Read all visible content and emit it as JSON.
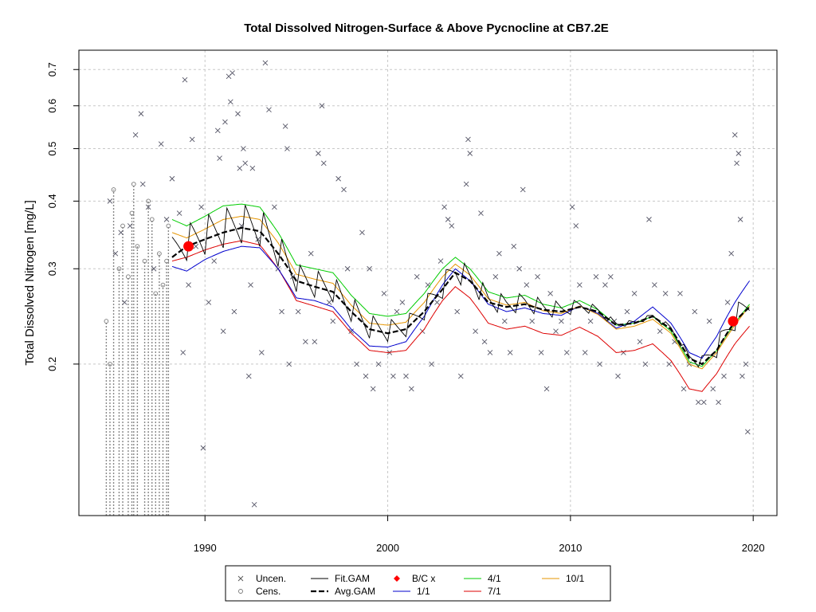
{
  "chart_data": {
    "type": "scatter",
    "title": "Total Dissolved Nitrogen-Surface & Above Pycnocline at CB7.2E",
    "xlabel": "",
    "ylabel": "Total Dissolved Nitrogen [mg/L]",
    "y_scale": "log",
    "xlim": [
      1983.1,
      2021.3
    ],
    "ylim": [
      0.105,
      0.76
    ],
    "x_ticks": [
      1990,
      2000,
      2010,
      2020
    ],
    "y_ticks": [
      0.2,
      0.3,
      0.4,
      0.5,
      0.6,
      0.7
    ],
    "grid": true,
    "legend_position": "bottom",
    "legend": [
      {
        "label": "Uncen.",
        "symbol": "x",
        "color": "#555555"
      },
      {
        "label": "Cens.",
        "symbol": "circle",
        "color": "#777777"
      },
      {
        "label": "Fit.GAM",
        "symbol": "line",
        "color": "#000000"
      },
      {
        "label": "Avg.GAM",
        "symbol": "dashed-thick",
        "color": "#000000"
      },
      {
        "label": "B/C x",
        "symbol": "diamond",
        "color": "#ff0000"
      },
      {
        "label": "1/1",
        "symbol": "line",
        "color": "#0000cd"
      },
      {
        "label": "4/1",
        "symbol": "line",
        "color": "#00cc00"
      },
      {
        "label": "7/1",
        "symbol": "line",
        "color": "#dd0000"
      },
      {
        "label": "10/1",
        "symbol": "line",
        "color": "#e69500"
      }
    ],
    "uncensored_points": [
      [
        1984.8,
        0.4
      ],
      [
        1985.1,
        0.32
      ],
      [
        1985.4,
        0.35
      ],
      [
        1985.6,
        0.26
      ],
      [
        1985.9,
        0.36
      ],
      [
        1986.2,
        0.53
      ],
      [
        1986.5,
        0.58
      ],
      [
        1986.6,
        0.43
      ],
      [
        1986.9,
        0.39
      ],
      [
        1987.2,
        0.3
      ],
      [
        1987.6,
        0.51
      ],
      [
        1987.9,
        0.37
      ],
      [
        1988.2,
        0.44
      ],
      [
        1988.6,
        0.38
      ],
      [
        1988.8,
        0.21
      ],
      [
        1988.9,
        0.67
      ],
      [
        1989.1,
        0.28
      ],
      [
        1989.3,
        0.52
      ],
      [
        1989.5,
        0.33
      ],
      [
        1989.8,
        0.39
      ],
      [
        1989.9,
        0.14
      ],
      [
        1990.2,
        0.26
      ],
      [
        1990.5,
        0.31
      ],
      [
        1990.7,
        0.54
      ],
      [
        1990.8,
        0.48
      ],
      [
        1991.0,
        0.23
      ],
      [
        1991.1,
        0.56
      ],
      [
        1991.3,
        0.68
      ],
      [
        1991.4,
        0.61
      ],
      [
        1991.5,
        0.69
      ],
      [
        1991.6,
        0.25
      ],
      [
        1991.8,
        0.58
      ],
      [
        1991.9,
        0.46
      ],
      [
        1992.0,
        0.36
      ],
      [
        1992.1,
        0.5
      ],
      [
        1992.2,
        0.47
      ],
      [
        1992.4,
        0.19
      ],
      [
        1992.5,
        0.28
      ],
      [
        1992.6,
        0.46
      ],
      [
        1992.7,
        0.11
      ],
      [
        1992.9,
        0.34
      ],
      [
        1993.1,
        0.21
      ],
      [
        1993.3,
        0.72
      ],
      [
        1993.5,
        0.59
      ],
      [
        1993.8,
        0.39
      ],
      [
        1994.0,
        0.3
      ],
      [
        1994.2,
        0.25
      ],
      [
        1994.4,
        0.55
      ],
      [
        1994.5,
        0.5
      ],
      [
        1994.6,
        0.2
      ],
      [
        1994.8,
        0.29
      ],
      [
        1995.1,
        0.25
      ],
      [
        1995.5,
        0.22
      ],
      [
        1995.8,
        0.32
      ],
      [
        1996.0,
        0.22
      ],
      [
        1996.2,
        0.49
      ],
      [
        1996.4,
        0.6
      ],
      [
        1996.5,
        0.47
      ],
      [
        1996.8,
        0.26
      ],
      [
        1997.0,
        0.24
      ],
      [
        1997.3,
        0.44
      ],
      [
        1997.6,
        0.42
      ],
      [
        1997.8,
        0.3
      ],
      [
        1998.0,
        0.23
      ],
      [
        1998.3,
        0.2
      ],
      [
        1998.6,
        0.35
      ],
      [
        1998.8,
        0.19
      ],
      [
        1999.0,
        0.3
      ],
      [
        1999.2,
        0.18
      ],
      [
        1999.5,
        0.2
      ],
      [
        1999.8,
        0.27
      ],
      [
        2000.1,
        0.21
      ],
      [
        2000.3,
        0.19
      ],
      [
        2000.5,
        0.25
      ],
      [
        2000.8,
        0.26
      ],
      [
        2001.0,
        0.19
      ],
      [
        2001.3,
        0.18
      ],
      [
        2001.6,
        0.29
      ],
      [
        2001.9,
        0.23
      ],
      [
        2002.2,
        0.28
      ],
      [
        2002.4,
        0.2
      ],
      [
        2002.7,
        0.26
      ],
      [
        2002.9,
        0.31
      ],
      [
        2003.1,
        0.39
      ],
      [
        2003.3,
        0.37
      ],
      [
        2003.5,
        0.36
      ],
      [
        2003.8,
        0.25
      ],
      [
        2004.0,
        0.19
      ],
      [
        2004.3,
        0.43
      ],
      [
        2004.4,
        0.52
      ],
      [
        2004.5,
        0.49
      ],
      [
        2004.8,
        0.23
      ],
      [
        2005.1,
        0.38
      ],
      [
        2005.3,
        0.22
      ],
      [
        2005.6,
        0.21
      ],
      [
        2005.9,
        0.29
      ],
      [
        2006.1,
        0.32
      ],
      [
        2006.4,
        0.24
      ],
      [
        2006.7,
        0.21
      ],
      [
        2006.9,
        0.33
      ],
      [
        2007.2,
        0.3
      ],
      [
        2007.4,
        0.42
      ],
      [
        2007.6,
        0.28
      ],
      [
        2007.9,
        0.24
      ],
      [
        2008.2,
        0.29
      ],
      [
        2008.4,
        0.21
      ],
      [
        2008.7,
        0.18
      ],
      [
        2008.9,
        0.27
      ],
      [
        2009.2,
        0.23
      ],
      [
        2009.5,
        0.24
      ],
      [
        2009.8,
        0.21
      ],
      [
        2010.1,
        0.39
      ],
      [
        2010.3,
        0.36
      ],
      [
        2010.5,
        0.28
      ],
      [
        2010.8,
        0.21
      ],
      [
        2011.1,
        0.24
      ],
      [
        2011.4,
        0.29
      ],
      [
        2011.6,
        0.2
      ],
      [
        2011.9,
        0.28
      ],
      [
        2012.2,
        0.29
      ],
      [
        2012.4,
        0.24
      ],
      [
        2012.6,
        0.19
      ],
      [
        2012.9,
        0.21
      ],
      [
        2013.1,
        0.25
      ],
      [
        2013.5,
        0.27
      ],
      [
        2013.8,
        0.22
      ],
      [
        2014.1,
        0.2
      ],
      [
        2014.3,
        0.37
      ],
      [
        2014.6,
        0.28
      ],
      [
        2014.9,
        0.23
      ],
      [
        2015.2,
        0.27
      ],
      [
        2015.4,
        0.2
      ],
      [
        2015.7,
        0.22
      ],
      [
        2016.0,
        0.27
      ],
      [
        2016.2,
        0.18
      ],
      [
        2016.5,
        0.2
      ],
      [
        2016.8,
        0.25
      ],
      [
        2017.0,
        0.17
      ],
      [
        2017.3,
        0.17
      ],
      [
        2017.6,
        0.24
      ],
      [
        2017.8,
        0.18
      ],
      [
        2018.1,
        0.17
      ],
      [
        2018.4,
        0.19
      ],
      [
        2018.6,
        0.26
      ],
      [
        2018.8,
        0.32
      ],
      [
        2019.0,
        0.53
      ],
      [
        2019.1,
        0.47
      ],
      [
        2019.2,
        0.49
      ],
      [
        2019.3,
        0.37
      ],
      [
        2019.4,
        0.19
      ],
      [
        2019.6,
        0.2
      ],
      [
        2019.7,
        0.15
      ]
    ],
    "censored_points": [
      [
        1984.6,
        0.24
      ],
      [
        1984.8,
        0.2
      ],
      [
        1985.0,
        0.42
      ],
      [
        1985.3,
        0.3
      ],
      [
        1985.5,
        0.36
      ],
      [
        1985.8,
        0.29
      ],
      [
        1986.0,
        0.38
      ],
      [
        1986.1,
        0.43
      ],
      [
        1986.3,
        0.33
      ],
      [
        1986.7,
        0.31
      ],
      [
        1986.9,
        0.4
      ],
      [
        1987.1,
        0.37
      ],
      [
        1987.3,
        0.27
      ],
      [
        1987.5,
        0.32
      ],
      [
        1987.7,
        0.28
      ],
      [
        1987.9,
        0.31
      ],
      [
        1988.0,
        0.36
      ]
    ],
    "censored_interval_x": [
      1984.6,
      1984.8,
      1985.0,
      1985.3,
      1985.5,
      1985.8,
      1986.0,
      1986.1,
      1986.3,
      1986.7,
      1986.9,
      1987.1,
      1987.3,
      1987.5,
      1987.7,
      1987.9,
      1988.0
    ],
    "avg_gam": [
      [
        1988.2,
        0.315
      ],
      [
        1989.0,
        0.33
      ],
      [
        1990.0,
        0.34
      ],
      [
        1991.0,
        0.35
      ],
      [
        1992.0,
        0.357
      ],
      [
        1993.0,
        0.352
      ],
      [
        1994.0,
        0.32
      ],
      [
        1995.0,
        0.285
      ],
      [
        1996.0,
        0.278
      ],
      [
        1997.0,
        0.272
      ],
      [
        1998.0,
        0.25
      ],
      [
        1999.0,
        0.232
      ],
      [
        2000.0,
        0.228
      ],
      [
        2001.0,
        0.232
      ],
      [
        2002.0,
        0.25
      ],
      [
        2003.0,
        0.275
      ],
      [
        2003.7,
        0.295
      ],
      [
        2004.5,
        0.285
      ],
      [
        2005.5,
        0.26
      ],
      [
        2006.5,
        0.255
      ],
      [
        2007.5,
        0.258
      ],
      [
        2008.5,
        0.252
      ],
      [
        2009.5,
        0.25
      ],
      [
        2010.5,
        0.255
      ],
      [
        2011.5,
        0.25
      ],
      [
        2012.5,
        0.236
      ],
      [
        2013.5,
        0.238
      ],
      [
        2014.5,
        0.245
      ],
      [
        2015.5,
        0.232
      ],
      [
        2016.5,
        0.205
      ],
      [
        2017.2,
        0.2
      ],
      [
        2018.0,
        0.212
      ],
      [
        2019.0,
        0.24
      ],
      [
        2019.8,
        0.255
      ]
    ],
    "line_1_1": [
      [
        1988.2,
        0.303
      ],
      [
        1989.0,
        0.297
      ],
      [
        1990.0,
        0.312
      ],
      [
        1991.0,
        0.323
      ],
      [
        1992.0,
        0.33
      ],
      [
        1993.0,
        0.328
      ],
      [
        1994.0,
        0.3
      ],
      [
        1995.0,
        0.265
      ],
      [
        1996.0,
        0.262
      ],
      [
        1997.0,
        0.255
      ],
      [
        1998.0,
        0.232
      ],
      [
        1999.0,
        0.216
      ],
      [
        2000.0,
        0.215
      ],
      [
        2001.0,
        0.22
      ],
      [
        2002.0,
        0.245
      ],
      [
        2003.0,
        0.28
      ],
      [
        2003.7,
        0.3
      ],
      [
        2004.5,
        0.285
      ],
      [
        2005.5,
        0.258
      ],
      [
        2006.5,
        0.25
      ],
      [
        2007.5,
        0.254
      ],
      [
        2008.5,
        0.248
      ],
      [
        2009.5,
        0.246
      ],
      [
        2010.5,
        0.256
      ],
      [
        2011.5,
        0.248
      ],
      [
        2012.5,
        0.233
      ],
      [
        2013.5,
        0.24
      ],
      [
        2014.5,
        0.255
      ],
      [
        2015.5,
        0.238
      ],
      [
        2016.5,
        0.21
      ],
      [
        2017.2,
        0.205
      ],
      [
        2018.0,
        0.225
      ],
      [
        2019.0,
        0.26
      ],
      [
        2019.8,
        0.285
      ]
    ],
    "line_4_1": [
      [
        1988.2,
        0.37
      ],
      [
        1989.0,
        0.36
      ],
      [
        1990.0,
        0.375
      ],
      [
        1991.0,
        0.392
      ],
      [
        1992.0,
        0.395
      ],
      [
        1993.0,
        0.39
      ],
      [
        1994.0,
        0.35
      ],
      [
        1995.0,
        0.305
      ],
      [
        1996.0,
        0.3
      ],
      [
        1997.0,
        0.295
      ],
      [
        1998.0,
        0.268
      ],
      [
        1999.0,
        0.248
      ],
      [
        2000.0,
        0.245
      ],
      [
        2001.0,
        0.248
      ],
      [
        2002.0,
        0.27
      ],
      [
        2003.0,
        0.3
      ],
      [
        2003.7,
        0.315
      ],
      [
        2004.5,
        0.3
      ],
      [
        2005.5,
        0.272
      ],
      [
        2006.5,
        0.265
      ],
      [
        2007.5,
        0.268
      ],
      [
        2008.5,
        0.258
      ],
      [
        2009.5,
        0.254
      ],
      [
        2010.5,
        0.262
      ],
      [
        2011.5,
        0.252
      ],
      [
        2012.5,
        0.236
      ],
      [
        2013.5,
        0.238
      ],
      [
        2014.5,
        0.245
      ],
      [
        2015.5,
        0.23
      ],
      [
        2016.5,
        0.202
      ],
      [
        2017.2,
        0.198
      ],
      [
        2018.0,
        0.212
      ],
      [
        2019.0,
        0.238
      ],
      [
        2019.8,
        0.258
      ]
    ],
    "line_7_1": [
      [
        1988.2,
        0.31
      ],
      [
        1989.0,
        0.315
      ],
      [
        1990.0,
        0.325
      ],
      [
        1991.0,
        0.333
      ],
      [
        1992.0,
        0.338
      ],
      [
        1993.0,
        0.332
      ],
      [
        1994.0,
        0.3
      ],
      [
        1995.0,
        0.262
      ],
      [
        1996.0,
        0.256
      ],
      [
        1997.0,
        0.25
      ],
      [
        1998.0,
        0.228
      ],
      [
        1999.0,
        0.212
      ],
      [
        2000.0,
        0.21
      ],
      [
        2001.0,
        0.212
      ],
      [
        2002.0,
        0.232
      ],
      [
        2003.0,
        0.262
      ],
      [
        2003.7,
        0.278
      ],
      [
        2004.5,
        0.265
      ],
      [
        2005.5,
        0.238
      ],
      [
        2006.5,
        0.232
      ],
      [
        2007.5,
        0.235
      ],
      [
        2008.5,
        0.228
      ],
      [
        2009.5,
        0.226
      ],
      [
        2010.5,
        0.234
      ],
      [
        2011.5,
        0.225
      ],
      [
        2012.5,
        0.21
      ],
      [
        2013.5,
        0.212
      ],
      [
        2014.5,
        0.218
      ],
      [
        2015.5,
        0.203
      ],
      [
        2016.5,
        0.18
      ],
      [
        2017.2,
        0.178
      ],
      [
        2018.0,
        0.192
      ],
      [
        2019.0,
        0.218
      ],
      [
        2019.8,
        0.235
      ]
    ],
    "line_10_1": [
      [
        1988.2,
        0.35
      ],
      [
        1989.0,
        0.342
      ],
      [
        1990.0,
        0.355
      ],
      [
        1991.0,
        0.37
      ],
      [
        1992.0,
        0.375
      ],
      [
        1993.0,
        0.37
      ],
      [
        1994.0,
        0.335
      ],
      [
        1995.0,
        0.293
      ],
      [
        1996.0,
        0.287
      ],
      [
        1997.0,
        0.282
      ],
      [
        1998.0,
        0.257
      ],
      [
        1999.0,
        0.238
      ],
      [
        2000.0,
        0.236
      ],
      [
        2001.0,
        0.239
      ],
      [
        2002.0,
        0.26
      ],
      [
        2003.0,
        0.29
      ],
      [
        2003.7,
        0.306
      ],
      [
        2004.5,
        0.292
      ],
      [
        2005.5,
        0.264
      ],
      [
        2006.5,
        0.257
      ],
      [
        2007.5,
        0.26
      ],
      [
        2008.5,
        0.251
      ],
      [
        2009.5,
        0.248
      ],
      [
        2010.5,
        0.256
      ],
      [
        2011.5,
        0.247
      ],
      [
        2012.5,
        0.232
      ],
      [
        2013.5,
        0.235
      ],
      [
        2014.5,
        0.242
      ],
      [
        2015.5,
        0.228
      ],
      [
        2016.5,
        0.2
      ],
      [
        2017.2,
        0.196
      ],
      [
        2018.0,
        0.21
      ],
      [
        2019.0,
        0.236
      ],
      [
        2019.8,
        0.256
      ]
    ],
    "fit_gam_amplitude": [
      [
        1988.2,
        0.12
      ],
      [
        1990.0,
        0.14
      ],
      [
        1993.0,
        0.14
      ],
      [
        1995.0,
        0.1
      ],
      [
        1998.0,
        0.09
      ],
      [
        2001.0,
        0.07
      ],
      [
        2003.5,
        0.09
      ],
      [
        2006.0,
        0.07
      ],
      [
        2009.0,
        0.06
      ],
      [
        2012.5,
        0.02
      ],
      [
        2014.5,
        0.015
      ],
      [
        2016.5,
        0.03
      ],
      [
        2018.5,
        0.08
      ],
      [
        2019.8,
        0.1
      ]
    ],
    "bc_points": [
      [
        1989.1,
        0.33
      ],
      [
        2018.9,
        0.24
      ]
    ]
  }
}
